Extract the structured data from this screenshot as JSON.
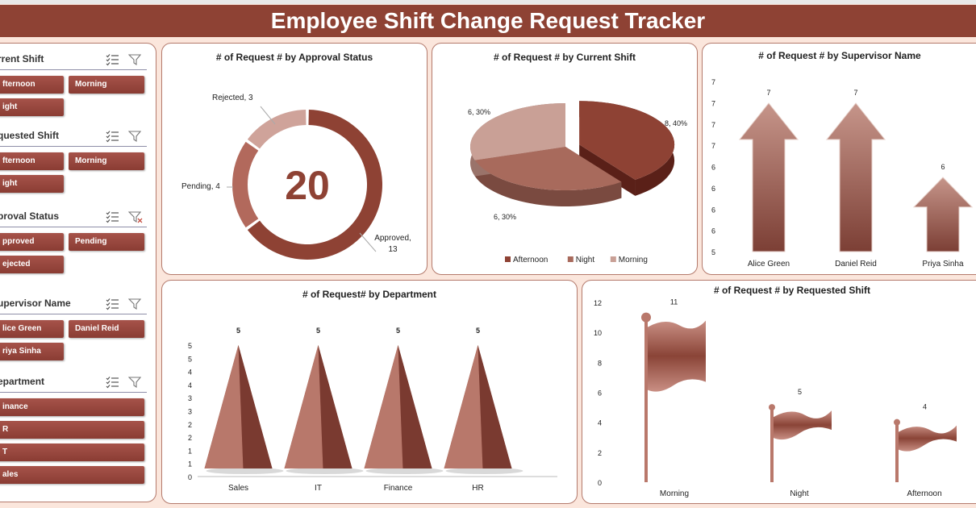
{
  "title": "Employee Shift Change Request Tracker",
  "slicers": [
    {
      "title": "Current Shift",
      "shown": "rrent Shift",
      "items": [
        "Afternoon",
        "Morning",
        "Night"
      ],
      "shown_items": [
        "fternoon",
        "Morning",
        "ight"
      ]
    },
    {
      "title": "Requested Shift",
      "shown": "quested Shift",
      "items": [
        "Afternoon",
        "Morning",
        "Night"
      ],
      "shown_items": [
        "fternoon",
        "Morning",
        "ight"
      ]
    },
    {
      "title": "Approval Status",
      "shown": "proval Status",
      "items": [
        "Approved",
        "Pending",
        "Rejected"
      ],
      "shown_items": [
        "pproved",
        "Pending",
        "ejected"
      ]
    },
    {
      "title": "Supervisor Name",
      "shown": "upervisor Name",
      "items": [
        "Alice Green",
        "Daniel Reid",
        "Priya Sinha"
      ],
      "shown_items": [
        "lice Green",
        "Daniel Reid",
        "riya Sinha"
      ]
    },
    {
      "title": "Department",
      "shown": "epartment",
      "items": [
        "Finance",
        "HR",
        "IT",
        "Sales"
      ],
      "shown_items": [
        "inance",
        "R",
        "T",
        "ales"
      ]
    }
  ],
  "chart_data": [
    {
      "type": "pie",
      "subtype": "doughnut",
      "title": "# of Request # by Approval Status",
      "center_label": "20",
      "categories": [
        "Approved",
        "Pending",
        "Rejected"
      ],
      "values": [
        13,
        4,
        3
      ],
      "colors": [
        "#8e4234",
        "#b2695c",
        "#cfa39a"
      ],
      "labels": [
        "Approved,",
        "13",
        "Pending, 4",
        "Rejected, 3"
      ]
    },
    {
      "type": "pie",
      "subtype": "3d-exploded",
      "title": "# of Request # by Current Shift",
      "categories": [
        "Afternoon",
        "Night",
        "Morning"
      ],
      "values": [
        8,
        6,
        6
      ],
      "labels": [
        "8, 40%",
        "6, 30%",
        "6, 30%"
      ],
      "legend": "bottom",
      "colors": [
        "#8e4234",
        "#a86a5c",
        "#c9a096"
      ]
    },
    {
      "type": "bar",
      "subtype": "arrow-shapes",
      "title": "# of Request # by Supervisor Name",
      "categories": [
        "Alice Green",
        "Daniel Reid",
        "Priya Sinha"
      ],
      "values": [
        7,
        7,
        6
      ],
      "ylim": [
        5,
        7
      ],
      "yticks": [
        "7",
        "7",
        "7",
        "7",
        "6",
        "6",
        "6",
        "6",
        "5"
      ]
    },
    {
      "type": "bar",
      "subtype": "pyramid",
      "title": "# of Request#  by Department",
      "categories": [
        "Sales",
        "IT",
        "Finance",
        "HR"
      ],
      "values": [
        5,
        5,
        5,
        5
      ],
      "ylim": [
        0,
        5
      ],
      "yticks": [
        "5",
        "5",
        "4",
        "4",
        "3",
        "3",
        "2",
        "2",
        "1",
        "1",
        "0"
      ]
    },
    {
      "type": "bar",
      "subtype": "flag-shapes",
      "title": "# of Request # by Requested Shift",
      "categories": [
        "Morning",
        "Night",
        "Afternoon"
      ],
      "values": [
        11,
        5,
        4
      ],
      "ylim": [
        0,
        12
      ],
      "yticks": [
        "12",
        "10",
        "8",
        "6",
        "4",
        "2",
        "0"
      ]
    }
  ]
}
